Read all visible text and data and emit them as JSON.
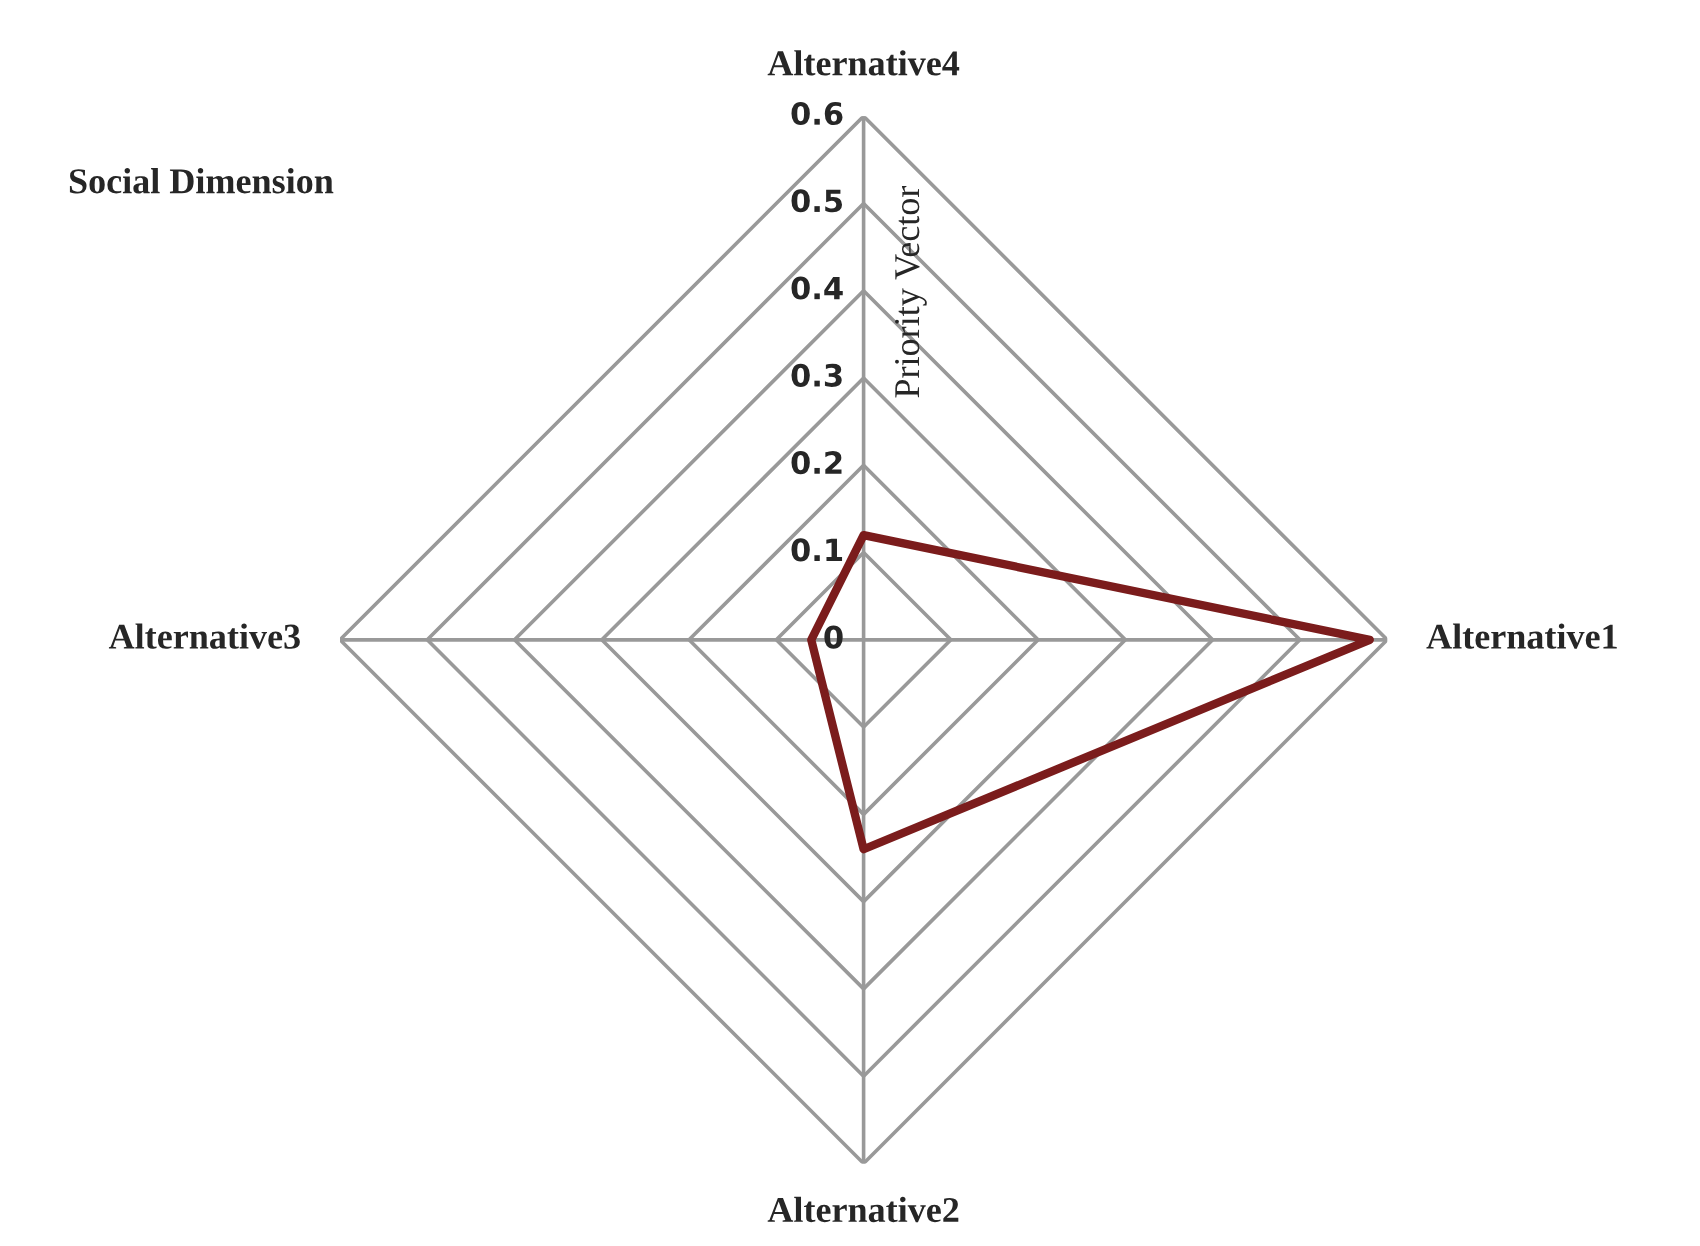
{
  "chart_data": {
    "type": "radar",
    "title": "Social Dimension",
    "ylabel": "Priority Vector",
    "categories": [
      "Alternative4",
      "Alternative1",
      "Alternative2",
      "Alternative3"
    ],
    "series": [
      {
        "color": "#7b1c1c",
        "values": [
          0.12,
          0.58,
          0.24,
          0.06
        ]
      }
    ],
    "ylim": [
      0,
      0.6
    ],
    "yticks": [
      0,
      0.1,
      0.2,
      0.3,
      0.4,
      0.5,
      0.6
    ],
    "grid": true,
    "marker": "none",
    "line_style": "solid"
  }
}
